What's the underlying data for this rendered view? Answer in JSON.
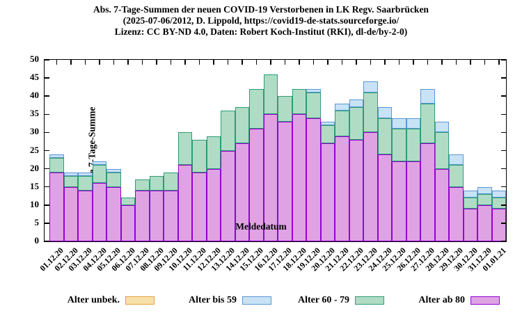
{
  "title": {
    "line1": "Abs. 7-Tage-Summen der neuen COVID-19 Verstorbenen in LK Regv. Saarbrücken",
    "line2": "(2025-07-06/2012, D. Lippold, https://covid19-de-stats.sourceforge.io/",
    "line3": "Lizenz: CC BY-ND 4.0, Daten: Robert Koch-Institut (RKI), dl-de/by-2-0)"
  },
  "y_axis": {
    "label": "Absolute 7-Tage-Summe",
    "ticks": [
      0,
      5,
      10,
      15,
      20,
      25,
      30,
      35,
      40,
      45,
      50
    ],
    "min": 0,
    "max": 50
  },
  "x_axis": {
    "label": "Meldedatum"
  },
  "legend": {
    "entries": [
      {
        "label": "Alter unbek.",
        "fill": "#F8E0A8",
        "border": "#E3A33C"
      },
      {
        "label": "Alter bis 59",
        "fill": "#C8E2F6",
        "border": "#5A97D5"
      },
      {
        "label": "Alter 60 - 79",
        "fill": "#B0DCC6",
        "border": "#2E9C74"
      },
      {
        "label": "Alter ab 80",
        "fill": "#DFA3E3",
        "border": "#9400D3"
      }
    ]
  },
  "chart_data": {
    "type": "bar",
    "stacked": true,
    "title": "Abs. 7-Tage-Summen der neuen COVID-19 Verstorbenen in LK Regv. Saarbrücken",
    "xlabel": "Meldedatum",
    "ylabel": "Absolute 7-Tage-Summe",
    "ylim": [
      0,
      50
    ],
    "grid": false,
    "legend_position": "bottom",
    "categories": [
      "01.12.20",
      "02.12.20",
      "03.12.20",
      "04.12.20",
      "05.12.20",
      "06.12.20",
      "07.12.20",
      "08.12.20",
      "09.12.20",
      "10.12.20",
      "11.12.20",
      "12.12.20",
      "13.12.20",
      "14.12.20",
      "15.12.20",
      "16.12.20",
      "17.12.20",
      "18.12.20",
      "19.12.20",
      "20.12.20",
      "21.12.20",
      "22.12.20",
      "23.12.20",
      "24.12.20",
      "25.12.20",
      "26.12.20",
      "27.12.20",
      "28.12.20",
      "29.12.20",
      "30.12.20",
      "31.12.20",
      "01.01.21"
    ],
    "stack_order_bottom_to_top": [
      "Alter ab 80",
      "Alter 60 - 79",
      "Alter bis 59",
      "Alter unbek."
    ],
    "series": [
      {
        "name": "Alter ab 80",
        "fill": "#DFA3E3",
        "border": "#9400D3",
        "values": [
          19,
          15,
          14,
          16,
          15,
          10,
          14,
          14,
          14,
          21,
          19,
          20,
          25,
          27,
          31,
          35,
          33,
          35,
          34,
          27,
          29,
          28,
          30,
          24,
          22,
          22,
          27,
          20,
          15,
          9,
          10,
          9
        ]
      },
      {
        "name": "Alter 60 - 79",
        "fill": "#B0DCC6",
        "border": "#2E9C74",
        "values": [
          4,
          3,
          4,
          5,
          4,
          2,
          3,
          4,
          5,
          9,
          9,
          9,
          11,
          10,
          11,
          11,
          7,
          7,
          7,
          5,
          7,
          9,
          11,
          10,
          9,
          9,
          11,
          10,
          6,
          3,
          3,
          3
        ]
      },
      {
        "name": "Alter bis 59",
        "fill": "#C8E2F6",
        "border": "#5A97D5",
        "values": [
          1,
          1,
          1,
          1,
          1,
          0,
          0,
          0,
          0,
          0,
          0,
          0,
          0,
          0,
          0,
          0,
          0,
          0,
          1,
          1,
          2,
          2,
          3,
          3,
          3,
          3,
          4,
          3,
          3,
          2,
          2,
          2
        ]
      },
      {
        "name": "Alter unbek.",
        "fill": "#F8E0A8",
        "border": "#E3A33C",
        "values": [
          0,
          0,
          0,
          0,
          0,
          0,
          0,
          0,
          0,
          0,
          0,
          0,
          0,
          0,
          0,
          0,
          0,
          0,
          0,
          0,
          0,
          0,
          0,
          0,
          0,
          0,
          0,
          0,
          0,
          0,
          0,
          0
        ]
      }
    ],
    "totals": [
      24,
      19,
      19,
      22,
      20,
      12,
      17,
      18,
      19,
      30,
      28,
      29,
      36,
      37,
      42,
      46,
      40,
      42,
      42,
      33,
      38,
      39,
      44,
      37,
      34,
      34,
      42,
      33,
      24,
      14,
      15,
      14
    ]
  }
}
